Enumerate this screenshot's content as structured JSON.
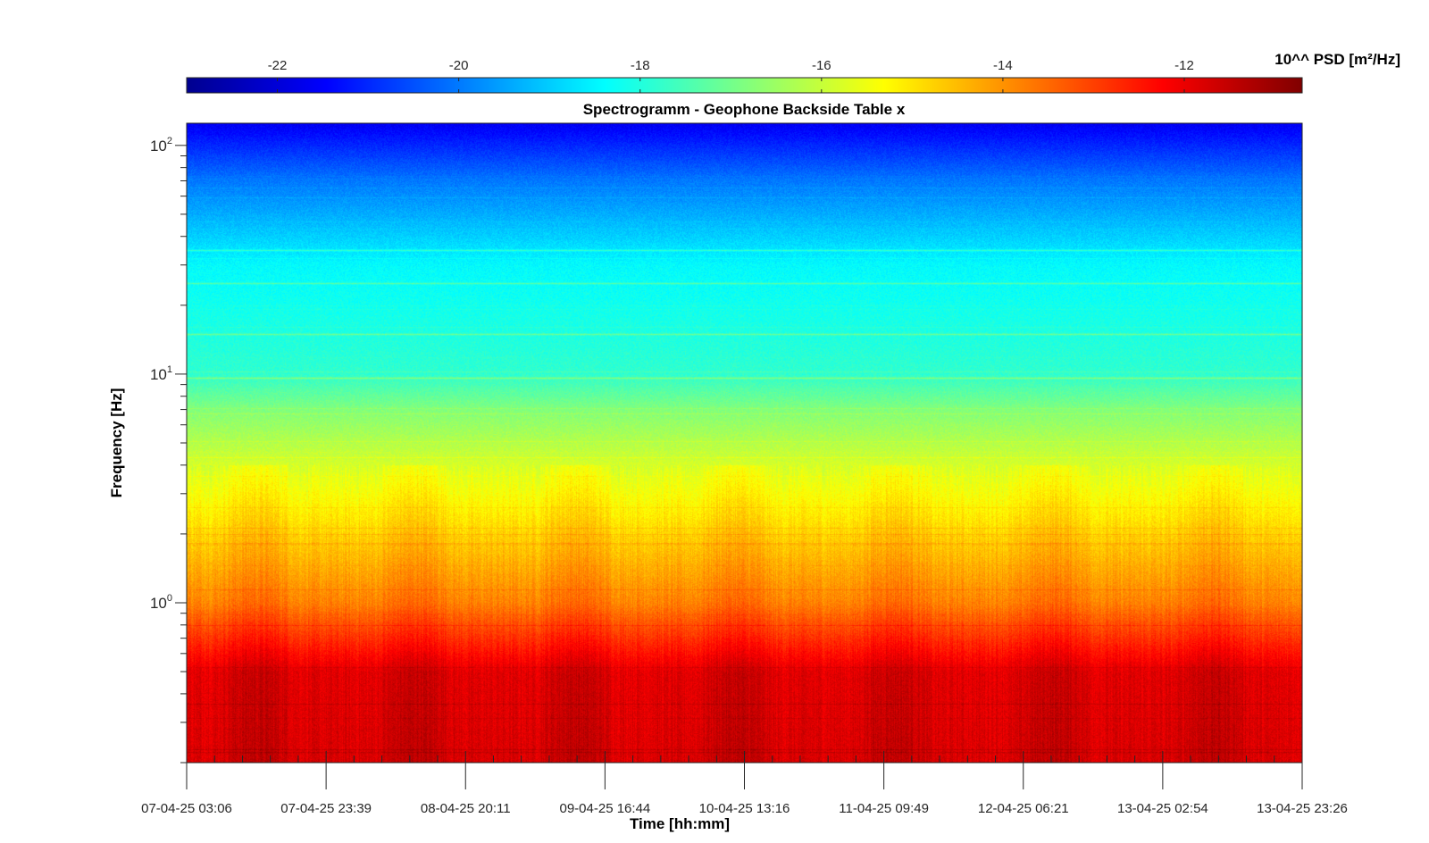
{
  "chart_data": {
    "type": "heatmap",
    "title": "Spectrogramm - Geophone Backside Table x",
    "xlabel": "Time [hh:mm]",
    "ylabel": "Frequency [Hz]",
    "y_scale": "log",
    "ylim_hz": [
      0.2,
      125
    ],
    "x_tick_labels": [
      "07-04-25 03:06",
      "07-04-25 23:39",
      "08-04-25 20:11",
      "09-04-25 16:44",
      "10-04-25 13:16",
      "11-04-25 09:49",
      "12-04-25 06:21",
      "13-04-25 02:54",
      "13-04-25 23:26"
    ],
    "y_ticks": [
      {
        "base": "10",
        "exp": "2",
        "value": 100
      },
      {
        "base": "10",
        "exp": "1",
        "value": 10
      },
      {
        "base": "10",
        "exp": "0",
        "value": 1
      }
    ],
    "colorbar": {
      "label": "10^^ PSD [m²/Hz]",
      "range": [
        -23,
        -10.7
      ],
      "ticks": [
        -22,
        -20,
        -18,
        -16,
        -14,
        -12
      ],
      "tick_labels": [
        "-22",
        "-20",
        "-18",
        "-16",
        "-14",
        "-12"
      ],
      "colormap": "jet"
    },
    "frequency_profile": [
      {
        "f": 0.2,
        "log_psd": -11.8
      },
      {
        "f": 0.5,
        "log_psd": -11.9
      },
      {
        "f": 0.7,
        "log_psd": -12.8
      },
      {
        "f": 1.0,
        "log_psd": -13.8
      },
      {
        "f": 2.0,
        "log_psd": -14.8
      },
      {
        "f": 4.0,
        "log_psd": -15.8
      },
      {
        "f": 7.0,
        "log_psd": -16.8
      },
      {
        "f": 10.0,
        "log_psd": -17.8
      },
      {
        "f": 30.0,
        "log_psd": -18.4
      },
      {
        "f": 70.0,
        "log_psd": -20.0
      },
      {
        "f": 125.0,
        "log_psd": -21.6
      }
    ],
    "spectral_lines_hz": [
      25,
      15,
      35,
      9.6
    ]
  }
}
